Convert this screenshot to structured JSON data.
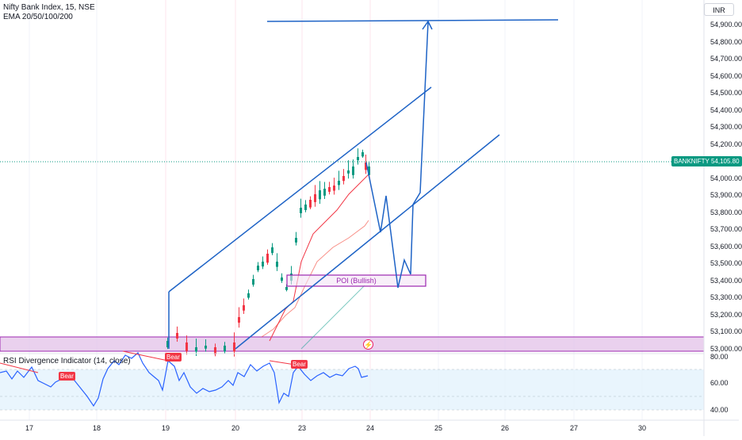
{
  "header": {
    "title": "Nifty Bank Index, 15, NSE",
    "indicator": "EMA 20/50/100/200"
  },
  "currency": "INR",
  "symbol_tag": "BANKNIFTY",
  "last_price": "54,105.80",
  "price_axis": [
    "54,900.00",
    "54,800.00",
    "54,700.00",
    "54,600.00",
    "54,500.00",
    "54,400.00",
    "54,300.00",
    "54,200.00",
    "54,000.00",
    "53,900.00",
    "53,800.00",
    "53,700.00",
    "53,600.00",
    "53,500.00",
    "53,400.00",
    "53,300.00",
    "53,200.00",
    "53,100.00",
    "53,000.00"
  ],
  "oscillator": {
    "title": "RSI Divergence Indicator (14, close)",
    "axis": [
      "80.00",
      "60.00",
      "40.00"
    ],
    "bear_labels": [
      "Bear",
      "Bear",
      "Bear"
    ]
  },
  "time_axis": [
    "17",
    "18",
    "19",
    "20",
    "23",
    "24",
    "25",
    "26",
    "27",
    "30"
  ],
  "poi_label": "POI (Bullish)",
  "colors": {
    "up_candle": "#089981",
    "down_candle": "#f23645",
    "drawing_lines": "#1e63c6",
    "zone_fill": "#e1bee7",
    "zone_border": "#9c27b0",
    "rsi_line": "#2962ff",
    "rsi_band": "#e3f2fd"
  },
  "toolbar": {
    "alert_icon": "lightning-icon"
  }
}
